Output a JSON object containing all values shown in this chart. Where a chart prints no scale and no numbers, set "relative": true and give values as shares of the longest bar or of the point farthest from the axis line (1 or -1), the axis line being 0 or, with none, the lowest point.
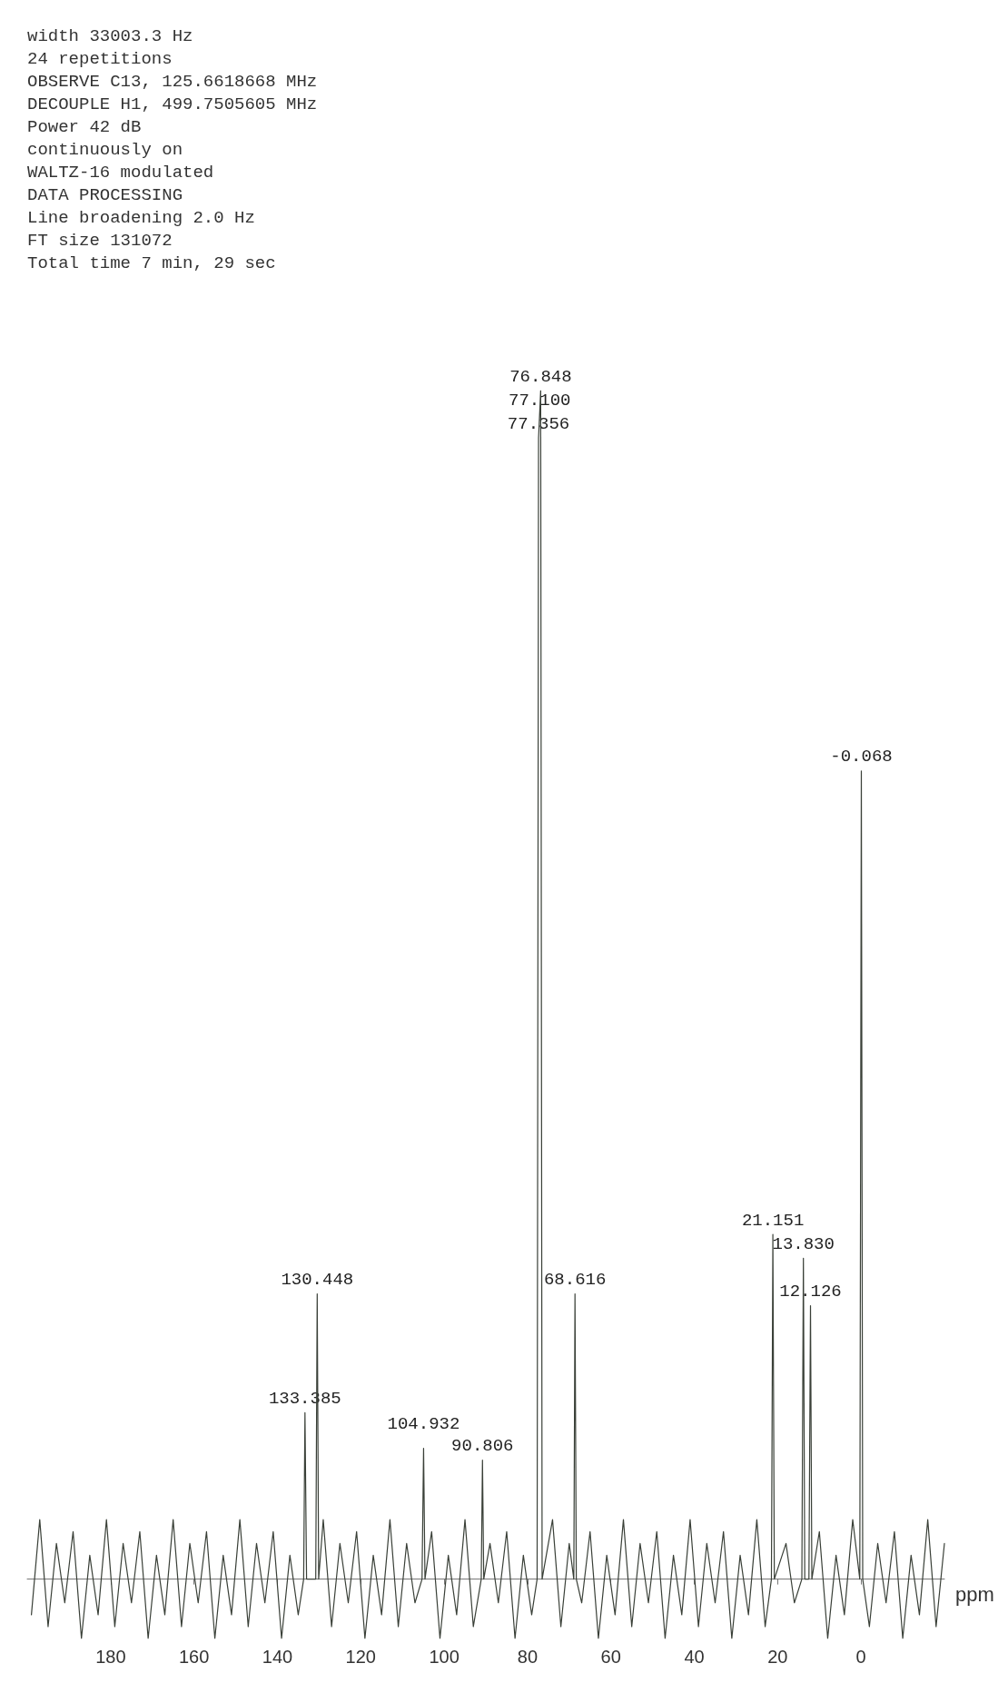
{
  "chart_data": {
    "type": "line",
    "relative": true,
    "ylabel": "ppm",
    "xlim": [
      200,
      -20
    ],
    "xticks": [
      0,
      20,
      40,
      60,
      80,
      100,
      120,
      140,
      160,
      180
    ],
    "grid": false,
    "marker": "none",
    "line_style": "solid",
    "series": [
      {
        "color": "#3a4038",
        "x": [
          -20,
          -18,
          -16,
          -14,
          -12,
          -10,
          -8,
          -6,
          -4,
          -2,
          -0.4,
          -0.068,
          0.3,
          2,
          4,
          6,
          8,
          10,
          11.8,
          12.126,
          12.5,
          13.5,
          13.83,
          14.2,
          16,
          18,
          20.8,
          21.151,
          21.5,
          23,
          25,
          27,
          29,
          31,
          33,
          35,
          37,
          39,
          41,
          43,
          45,
          47,
          49,
          51,
          53,
          55,
          57,
          59,
          61,
          63,
          65,
          67,
          68.3,
          68.616,
          68.9,
          70,
          72,
          74,
          76.5,
          76.848,
          77.1,
          77.356,
          77.7,
          79,
          81,
          83,
          85,
          87,
          89,
          90.5,
          90.806,
          91.1,
          93,
          95,
          97,
          99,
          101,
          103,
          104.6,
          104.932,
          105.3,
          107,
          109,
          111,
          113,
          115,
          117,
          119,
          121,
          123,
          125,
          127,
          129,
          130.1,
          130.448,
          130.8,
          133,
          133.385,
          133.7,
          135,
          137,
          139,
          141,
          143,
          145,
          147,
          149,
          151,
          153,
          155,
          157,
          159,
          161,
          163,
          165,
          167,
          169,
          171,
          173,
          175,
          177,
          179,
          181,
          183,
          185,
          187,
          189,
          191,
          193,
          195,
          197,
          199
        ],
        "values": [
          0.03,
          -0.04,
          0.05,
          -0.03,
          0.02,
          -0.05,
          0.04,
          -0.02,
          0.03,
          -0.04,
          0,
          0.68,
          0,
          0.05,
          -0.03,
          0.02,
          -0.05,
          0.04,
          0,
          0.23,
          0,
          0,
          0.27,
          0,
          -0.02,
          0.03,
          0,
          0.29,
          0,
          -0.04,
          0.05,
          -0.03,
          0.02,
          -0.05,
          0.04,
          -0.02,
          0.03,
          -0.04,
          0.05,
          -0.03,
          0.02,
          -0.05,
          0.04,
          -0.02,
          0.03,
          -0.04,
          0.05,
          -0.03,
          0.02,
          -0.05,
          0.04,
          -0.02,
          0,
          0.24,
          0,
          0.03,
          -0.04,
          0.05,
          0,
          1,
          0.98,
          0.96,
          0,
          -0.03,
          0.02,
          -0.05,
          0.04,
          -0.02,
          0.03,
          0,
          0.1,
          0,
          -0.04,
          0.05,
          -0.03,
          0.02,
          -0.05,
          0.04,
          0,
          0.11,
          0,
          -0.02,
          0.03,
          -0.04,
          0.05,
          -0.03,
          0.02,
          -0.05,
          0.04,
          -0.02,
          0.03,
          -0.04,
          0.05,
          0,
          0.24,
          0,
          0,
          0.14,
          0,
          -0.03,
          0.02,
          -0.05,
          0.04,
          -0.02,
          0.03,
          -0.04,
          0.05,
          -0.03,
          0.02,
          -0.05,
          0.04,
          -0.02,
          0.03,
          -0.04,
          0.05,
          -0.03,
          0.02,
          -0.05,
          0.04,
          -0.02,
          0.03,
          -0.04,
          0.05,
          -0.03,
          0.02,
          -0.05,
          0.04,
          -0.02,
          0.03,
          -0.04,
          0.05,
          -0.03
        ]
      }
    ],
    "annotations": [
      {
        "text": "-0.068",
        "x": -0.068,
        "y": 0.68
      },
      {
        "text": "12.126",
        "x": 12.126,
        "y": 0.23
      },
      {
        "text": "13.830",
        "x": 13.83,
        "y": 0.27
      },
      {
        "text": "21.151",
        "x": 21.151,
        "y": 0.29
      },
      {
        "text": "68.616",
        "x": 68.616,
        "y": 0.24
      },
      {
        "text": "76.848",
        "x": 76.848,
        "y": 1
      },
      {
        "text": "77.100",
        "x": 77.1,
        "y": 0.98
      },
      {
        "text": "77.356",
        "x": 77.356,
        "y": 0.96
      },
      {
        "text": "90.806",
        "x": 90.806,
        "y": 0.1
      },
      {
        "text": "104.932",
        "x": 104.932,
        "y": 0.11
      },
      {
        "text": "130.448",
        "x": 130.448,
        "y": 0.24
      },
      {
        "text": "133.385",
        "x": 133.385,
        "y": 0.14
      },
      "width 33003.3 Hz",
      "24 repetitions",
      "OBSERVE C13, 125.6618668 MHz",
      "DECOUPLE H1, 499.7505605 MHz",
      "Power 42 dB",
      "continuously on",
      "WALTZ-16 modulated",
      "DATA PROCESSING",
      "Line broadening 2.0 Hz",
      "FT size 131072",
      "Total time 7 min, 29 sec"
    ]
  }
}
